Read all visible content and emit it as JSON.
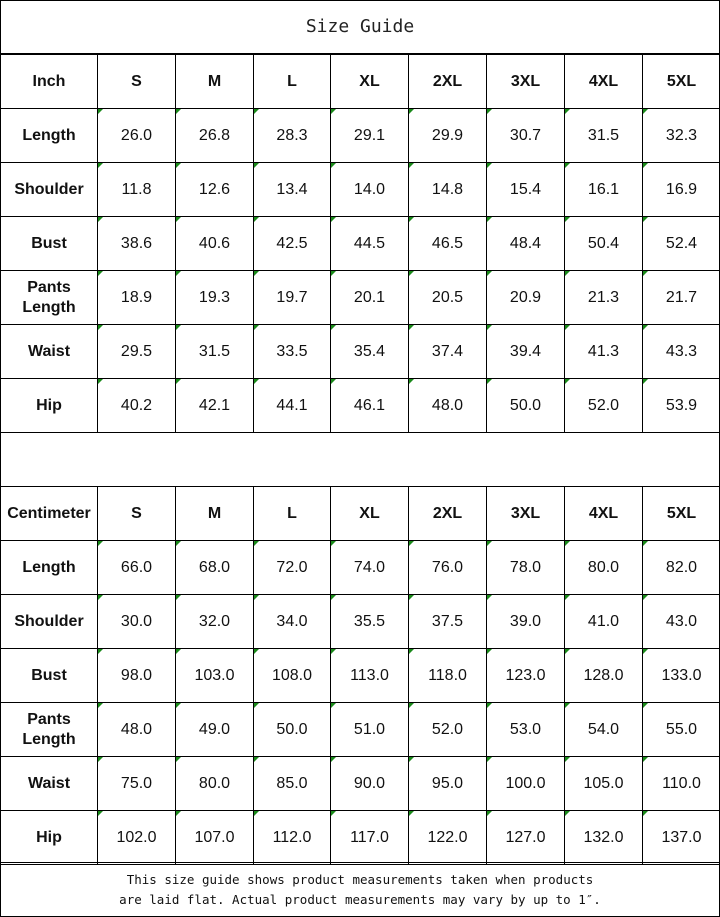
{
  "title": "Size Guide",
  "sizes": [
    "S",
    "M",
    "L",
    "XL",
    "2XL",
    "3XL",
    "4XL",
    "5XL"
  ],
  "tables": [
    {
      "unit": "Inch",
      "rows": [
        {
          "label": "Length",
          "values": [
            "26.0",
            "26.8",
            "28.3",
            "29.1",
            "29.9",
            "30.7",
            "31.5",
            "32.3"
          ]
        },
        {
          "label": "Shoulder",
          "values": [
            "11.8",
            "12.6",
            "13.4",
            "14.0",
            "14.8",
            "15.4",
            "16.1",
            "16.9"
          ]
        },
        {
          "label": "Bust",
          "values": [
            "38.6",
            "40.6",
            "42.5",
            "44.5",
            "46.5",
            "48.4",
            "50.4",
            "52.4"
          ]
        },
        {
          "label": "Pants Length",
          "values": [
            "18.9",
            "19.3",
            "19.7",
            "20.1",
            "20.5",
            "20.9",
            "21.3",
            "21.7"
          ]
        },
        {
          "label": "Waist",
          "values": [
            "29.5",
            "31.5",
            "33.5",
            "35.4",
            "37.4",
            "39.4",
            "41.3",
            "43.3"
          ]
        },
        {
          "label": "Hip",
          "values": [
            "40.2",
            "42.1",
            "44.1",
            "46.1",
            "48.0",
            "50.0",
            "52.0",
            "53.9"
          ]
        }
      ]
    },
    {
      "unit": "Centimeter",
      "rows": [
        {
          "label": "Length",
          "values": [
            "66.0",
            "68.0",
            "72.0",
            "74.0",
            "76.0",
            "78.0",
            "80.0",
            "82.0"
          ]
        },
        {
          "label": "Shoulder",
          "values": [
            "30.0",
            "32.0",
            "34.0",
            "35.5",
            "37.5",
            "39.0",
            "41.0",
            "43.0"
          ]
        },
        {
          "label": "Bust",
          "values": [
            "98.0",
            "103.0",
            "108.0",
            "113.0",
            "118.0",
            "123.0",
            "128.0",
            "133.0"
          ]
        },
        {
          "label": "Pants Length",
          "values": [
            "48.0",
            "49.0",
            "50.0",
            "51.0",
            "52.0",
            "53.0",
            "54.0",
            "55.0"
          ]
        },
        {
          "label": "Waist",
          "values": [
            "75.0",
            "80.0",
            "85.0",
            "90.0",
            "95.0",
            "100.0",
            "105.0",
            "110.0"
          ]
        },
        {
          "label": "Hip",
          "values": [
            "102.0",
            "107.0",
            "112.0",
            "117.0",
            "122.0",
            "127.0",
            "132.0",
            "137.0"
          ]
        }
      ]
    }
  ],
  "note": {
    "line1": "This size guide shows product measurements taken when products",
    "line2": "are laid flat. Actual product measurements may vary by up to 1″."
  }
}
